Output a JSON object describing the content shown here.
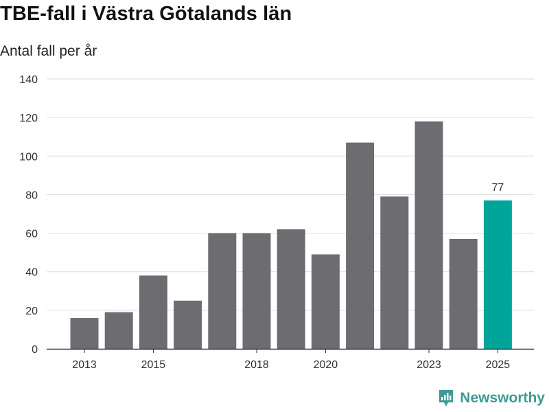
{
  "title": "TBE-fall i Västra Götalands län",
  "subtitle": "Antal fall per år",
  "brand": {
    "name": "Newsworthy",
    "icon": "newsworthy-logo-icon",
    "color": "#3e9a94"
  },
  "colors": {
    "bar": "#6d6c71",
    "highlight": "#00a599",
    "grid": "#dddddd",
    "axis": "#333333"
  },
  "chart_data": {
    "type": "bar",
    "title": "TBE-fall i Västra Götalands län",
    "subtitle": "Antal fall per år",
    "xlabel": "",
    "ylabel": "Antal fall per år",
    "categories": [
      "2013",
      "2014",
      "2015",
      "2016",
      "2017",
      "2018",
      "2019",
      "2020",
      "2021",
      "2022",
      "2023",
      "2024",
      "2025"
    ],
    "values": [
      16,
      19,
      38,
      25,
      60,
      60,
      62,
      49,
      107,
      79,
      118,
      57,
      77
    ],
    "x_tick_labels": [
      "2013",
      "2015",
      "2018",
      "2020",
      "2023",
      "2025"
    ],
    "y_ticks": [
      0,
      20,
      40,
      60,
      80,
      100,
      120,
      140
    ],
    "ylim": [
      0,
      140
    ],
    "highlight_category": "2025",
    "data_labels": [
      {
        "category": "2025",
        "text": "77"
      }
    ],
    "grid": true
  }
}
